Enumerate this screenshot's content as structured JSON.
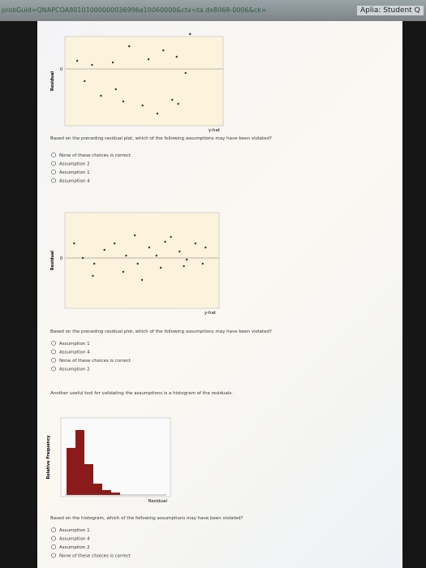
{
  "browser": {
    "url": "probGuid=QNAPCOA80101000000036996a10060000&ctx=ta.dx8068-0006&ck=",
    "tab": "Aplia: Student Q"
  },
  "questions": [
    {
      "plot": {
        "y_label": "Residual",
        "x_label": "y-hat",
        "zero_label": "0",
        "x": [
          81,
          40,
          63,
          5,
          15,
          29,
          53,
          72,
          78,
          10,
          21,
          36,
          49,
          59,
          69,
          73,
          31
        ],
        "y": [
          4.3,
          2.8,
          2.3,
          1,
          0.5,
          0.8,
          1.2,
          1.5,
          -0.5,
          -1.5,
          -3.3,
          -4,
          -4.5,
          -5.5,
          -3.8,
          -4.3,
          -2.5
        ]
      },
      "prompt": "Based on the preceding residual plot, which of the following assumptions may have been violated?",
      "options": [
        "None of these choices is correct",
        "Assumption 2",
        "Assumption 1",
        "Assumption 4"
      ]
    },
    {
      "plot": {
        "y_label": "Residual",
        "x_label": "y-hat",
        "zero_label": "0",
        "x": [
          3,
          9,
          17,
          24,
          31,
          39,
          45,
          47,
          55,
          60,
          66,
          70,
          76,
          81,
          87,
          94,
          16,
          37,
          50,
          63,
          79,
          92
        ],
        "y": [
          1.8,
          0,
          -0.7,
          1,
          1.8,
          0.3,
          2.8,
          -0.7,
          1.3,
          0.3,
          2,
          2.6,
          0.8,
          -0.2,
          1.8,
          1.3,
          -2.2,
          -1.7,
          -2.7,
          -1.2,
          -1,
          -0.7
        ]
      },
      "prompt": "Based on the preceding residual plot, which of the following assumptions may have been violated?",
      "options": [
        "Assumption 1",
        "Assumption 4",
        "None of these choices is correct",
        "Assumption 2"
      ]
    },
    {
      "intro": "Another useful tool for validating the assumptions is a histogram of the residuals.",
      "plot": {
        "y_label": "Relative Frequency",
        "x_label": "Residual",
        "values": [
          58,
          80,
          38,
          14,
          6,
          3
        ]
      },
      "prompt": "Based on the histogram, which of the following assumptions may have been violated?",
      "options": [
        "Assumption 1",
        "Assumption 4",
        "Assumption 2",
        "None of these choices is correct"
      ]
    }
  ]
}
